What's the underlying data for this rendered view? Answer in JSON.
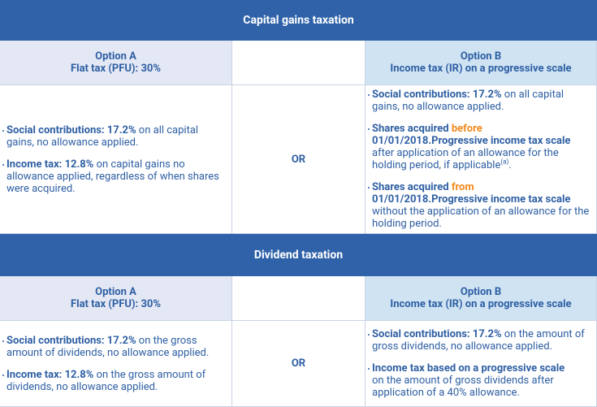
{
  "sections": [
    {
      "title": "Capital gains taxation",
      "option_a": {
        "label": "Option A",
        "name": "Flat tax (PFU): 30%",
        "bullets": [
          [
            {
              "text": "Social contributions: 17.2%",
              "style": "strong"
            },
            {
              "text": " on all capital gains, no allowance applied.",
              "style": "plain"
            }
          ],
          [
            {
              "text": "Income tax: 12.8%",
              "style": "strong"
            },
            {
              "text": " on capital gains no allowance applied, regardless of when shares were acquired.",
              "style": "plain"
            }
          ]
        ]
      },
      "separator": "OR",
      "option_b": {
        "label": "Option B",
        "name": "Income tax (IR) on a progressive scale",
        "bullets": [
          [
            {
              "text": "Social contributions: 17.2%",
              "style": "strong"
            },
            {
              "text": " on all capital gains, no allowance applied.",
              "style": "plain"
            }
          ],
          [
            {
              "text": "Shares acquired ",
              "style": "strong"
            },
            {
              "text": "before",
              "style": "highlight"
            },
            {
              "text": " 01/01/2018.",
              "style": "strong"
            },
            {
              "text": "Progressive income tax scale",
              "style": "strong"
            },
            {
              "text": " after application of an allowance for the holding period, if applicable",
              "style": "plain"
            },
            {
              "text": "(a)",
              "style": "sup"
            },
            {
              "text": ".",
              "style": "plain"
            }
          ],
          [
            {
              "text": "Shares acquired ",
              "style": "strong"
            },
            {
              "text": "from",
              "style": "highlight"
            },
            {
              "text": " 01/01/2018.",
              "style": "strong"
            },
            {
              "text": "Progressive income tax scale",
              "style": "strong"
            },
            {
              "text": "  without the application of an allowance for the holding period.",
              "style": "plain"
            }
          ]
        ]
      }
    },
    {
      "title": "Dividend taxation",
      "option_a": {
        "label": "Option A",
        "name": "Flat tax (PFU): 30%",
        "bullets": [
          [
            {
              "text": "Social contributions: 17.2%",
              "style": "strong"
            },
            {
              "text": " on the gross amount of dividends, no allowance applied.",
              "style": "plain"
            }
          ],
          [
            {
              "text": "Income tax: 12.8%",
              "style": "strong"
            },
            {
              "text": " on the gross amount of dividends, no allowance applied.",
              "style": "plain"
            }
          ]
        ]
      },
      "separator": "OR",
      "option_b": {
        "label": "Option B",
        "name": "Income tax (IR) on a progressive scale",
        "bullets": [
          [
            {
              "text": "Social contributions: 17.2%",
              "style": "strong"
            },
            {
              "text": "  on the amount of gross dividends, no allowance applied.",
              "style": "plain"
            }
          ],
          [
            {
              "text": "Income tax based on a progressive scale",
              "style": "strong-block"
            },
            {
              "text": " on the amount of gross dividends after application of a 40% allowance.",
              "style": "plain"
            }
          ]
        ]
      }
    }
  ]
}
